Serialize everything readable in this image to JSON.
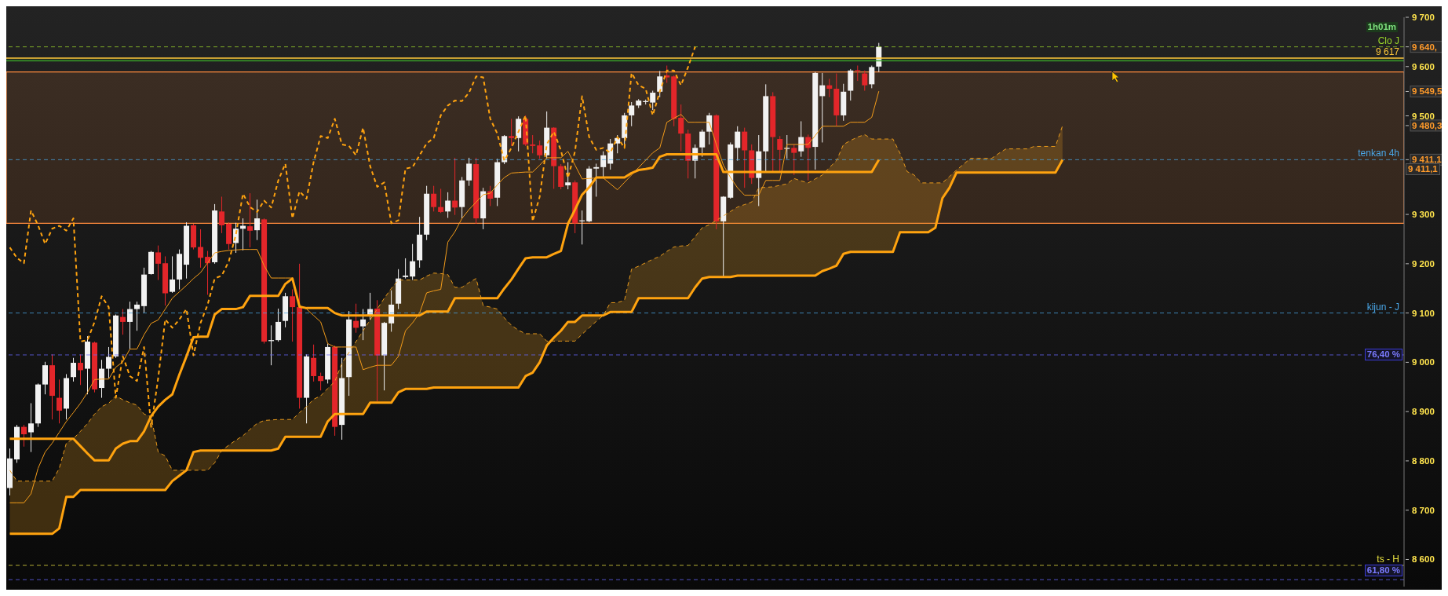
{
  "chart_data": {
    "type": "candlestick",
    "tick_labels": "y",
    "marker": "none",
    "categories": [
      null,
      null,
      null,
      null,
      null,
      null,
      null,
      null,
      null,
      null,
      null,
      null,
      null,
      null,
      null,
      null,
      null,
      null,
      null,
      null,
      null,
      null,
      null,
      null,
      null,
      null,
      null,
      null,
      null,
      null,
      null,
      null,
      null,
      null,
      null,
      null,
      null,
      null,
      null,
      null,
      null,
      null,
      null,
      null,
      null,
      null,
      null,
      null,
      null,
      null,
      null,
      null,
      null,
      null,
      null,
      null,
      null,
      null,
      null,
      null,
      null,
      null,
      null,
      null,
      null,
      null,
      null,
      null,
      null,
      null,
      null,
      null,
      null,
      null,
      null,
      null,
      null,
      null,
      null,
      null,
      null,
      null,
      null,
      null,
      null,
      null,
      null,
      null,
      null,
      null,
      null,
      null,
      null,
      null,
      null,
      null,
      null,
      null,
      null,
      null,
      null,
      null,
      null,
      null,
      null,
      null,
      null,
      null,
      null,
      null,
      null,
      null,
      null,
      null,
      null,
      null,
      null,
      null,
      null,
      null,
      null,
      null,
      null,
      null,
      null,
      null,
      null,
      null,
      null,
      null,
      null,
      null,
      null,
      null,
      null,
      null,
      null,
      null,
      null,
      null,
      null,
      null,
      null,
      null,
      null,
      null,
      null,
      null,
      null,
      null
    ],
    "ohlc": [
      [
        8745,
        8825,
        8730,
        8805
      ],
      [
        8803,
        8873,
        8796,
        8869
      ],
      [
        8869,
        8873,
        8829,
        8854
      ],
      [
        8858,
        8917,
        8818,
        8876
      ],
      [
        8876,
        8957,
        8869,
        8955
      ],
      [
        8955,
        9001,
        8935,
        8994
      ],
      [
        8994,
        9016,
        8884,
        8932
      ],
      [
        8928,
        8965,
        8876,
        8902
      ],
      [
        8906,
        8976,
        8884,
        8968
      ],
      [
        8970,
        9009,
        8961,
        8999
      ],
      [
        8999,
        9016,
        8954,
        8984
      ],
      [
        8987,
        9053,
        8935,
        9042
      ],
      [
        9040,
        9042,
        8939,
        8945
      ],
      [
        8948,
        9005,
        8928,
        8987
      ],
      [
        8987,
        9031,
        8968,
        9011
      ],
      [
        9012,
        9097,
        9009,
        9095
      ],
      [
        9092,
        9108,
        9056,
        9082
      ],
      [
        9082,
        9123,
        9027,
        9108
      ],
      [
        9108,
        9123,
        9064,
        9117
      ],
      [
        9114,
        9192,
        9101,
        9178
      ],
      [
        9179,
        9226,
        9178,
        9224
      ],
      [
        9223,
        9237,
        9167,
        9200
      ],
      [
        9201,
        9215,
        9115,
        9140
      ],
      [
        9143,
        9215,
        9141,
        9168
      ],
      [
        9168,
        9229,
        9148,
        9220
      ],
      [
        9198,
        9284,
        9170,
        9277
      ],
      [
        9278,
        9281,
        9229,
        9233
      ],
      [
        9234,
        9270,
        9192,
        9212
      ],
      [
        9214,
        9226,
        9137,
        9201
      ],
      [
        9203,
        9321,
        9200,
        9308
      ],
      [
        9306,
        9336,
        9262,
        9278
      ],
      [
        9281,
        9284,
        9229,
        9240
      ],
      [
        9242,
        9283,
        9222,
        9271
      ],
      [
        9271,
        9292,
        9227,
        9277
      ],
      [
        9276,
        9343,
        9233,
        9267
      ],
      [
        9268,
        9330,
        9248,
        9292
      ],
      [
        9290,
        9292,
        9038,
        9042
      ],
      [
        9043,
        9075,
        8994,
        9045
      ],
      [
        9045,
        9109,
        9042,
        9082
      ],
      [
        9084,
        9141,
        9071,
        9134
      ],
      [
        9134,
        9148,
        9042,
        9112
      ],
      [
        9112,
        9200,
        8906,
        8928
      ],
      [
        8928,
        9016,
        8876,
        9012
      ],
      [
        9009,
        9036,
        8961,
        8972
      ],
      [
        8972,
        8979,
        8943,
        8962
      ],
      [
        8965,
        9038,
        8957,
        9031
      ],
      [
        9031,
        9034,
        8851,
        8869
      ],
      [
        8873,
        9009,
        8843,
        8968
      ],
      [
        8970,
        9104,
        8932,
        9087
      ],
      [
        9084,
        9119,
        9060,
        9070
      ],
      [
        9073,
        9108,
        9045,
        9087
      ],
      [
        9095,
        9141,
        9086,
        9108
      ],
      [
        9109,
        9126,
        8921,
        9014
      ],
      [
        9014,
        9082,
        8943,
        9080
      ],
      [
        9079,
        9146,
        9062,
        9117
      ],
      [
        9119,
        9189,
        9108,
        9170
      ],
      [
        9173,
        9211,
        9170,
        9176
      ],
      [
        9174,
        9240,
        9167,
        9205
      ],
      [
        9207,
        9295,
        9192,
        9259
      ],
      [
        9259,
        9358,
        9248,
        9342
      ],
      [
        9342,
        9358,
        9306,
        9315
      ],
      [
        9315,
        9352,
        9303,
        9305
      ],
      [
        9306,
        9345,
        9293,
        9328
      ],
      [
        9328,
        9415,
        9299,
        9314
      ],
      [
        9315,
        9376,
        9292,
        9369
      ],
      [
        9369,
        9415,
        9358,
        9403
      ],
      [
        9402,
        9415,
        9281,
        9292
      ],
      [
        9292,
        9354,
        9270,
        9347
      ],
      [
        9347,
        9358,
        9317,
        9332
      ],
      [
        9334,
        9413,
        9317,
        9406
      ],
      [
        9406,
        9461,
        9402,
        9459
      ],
      [
        9459,
        9494,
        9439,
        9455
      ],
      [
        9455,
        9499,
        9428,
        9494
      ],
      [
        9494,
        9501,
        9439,
        9442
      ],
      [
        9442,
        9461,
        9424,
        9439
      ],
      [
        9440,
        9450,
        9413,
        9420
      ],
      [
        9420,
        9509,
        9413,
        9476
      ],
      [
        9476,
        9477,
        9352,
        9398
      ],
      [
        9398,
        9402,
        9351,
        9356
      ],
      [
        9359,
        9406,
        9351,
        9365
      ],
      [
        9365,
        9369,
        9262,
        9282
      ],
      [
        9286,
        9308,
        9239,
        9288
      ],
      [
        9286,
        9398,
        9284,
        9393
      ],
      [
        9393,
        9403,
        9336,
        9396
      ],
      [
        9396,
        9428,
        9376,
        9420
      ],
      [
        9403,
        9453,
        9391,
        9444
      ],
      [
        9444,
        9461,
        9424,
        9455
      ],
      [
        9455,
        9506,
        9442,
        9501
      ],
      [
        9501,
        9528,
        9479,
        9521
      ],
      [
        9521,
        9534,
        9516,
        9531
      ],
      [
        9528,
        9533,
        9523,
        9530
      ],
      [
        9527,
        9551,
        9512,
        9547
      ],
      [
        9549,
        9591,
        9538,
        9580
      ],
      [
        9582,
        9602,
        9567,
        9578
      ],
      [
        9580,
        9582,
        9479,
        9494
      ],
      [
        9496,
        9523,
        9428,
        9464
      ],
      [
        9464,
        9472,
        9373,
        9409
      ],
      [
        9409,
        9442,
        9373,
        9435
      ],
      [
        9436,
        9472,
        9417,
        9468
      ],
      [
        9468,
        9506,
        9442,
        9501
      ],
      [
        9501,
        9503,
        9270,
        9286
      ],
      [
        9286,
        9337,
        9174,
        9336
      ],
      [
        9334,
        9446,
        9332,
        9442
      ],
      [
        9435,
        9479,
        9409,
        9468
      ],
      [
        9468,
        9476,
        9354,
        9430
      ],
      [
        9430,
        9442,
        9362,
        9374
      ],
      [
        9374,
        9461,
        9317,
        9428
      ],
      [
        9428,
        9564,
        9387,
        9540
      ],
      [
        9540,
        9548,
        9387,
        9457
      ],
      [
        9453,
        9459,
        9387,
        9431
      ],
      [
        9433,
        9461,
        9413,
        9435
      ],
      [
        9435,
        9442,
        9380,
        9425
      ],
      [
        9428,
        9489,
        9417,
        9457
      ],
      [
        9457,
        9462,
        9369,
        9435
      ],
      [
        9437,
        9589,
        9391,
        9587
      ],
      [
        9540,
        9587,
        9446,
        9562
      ],
      [
        9562,
        9575,
        9538,
        9555
      ],
      [
        9555,
        9586,
        9479,
        9501
      ],
      [
        9501,
        9565,
        9490,
        9549
      ],
      [
        9551,
        9595,
        9531,
        9592
      ],
      [
        9593,
        9602,
        9571,
        9592
      ],
      [
        9586,
        9592,
        9551,
        9562
      ],
      [
        9564,
        9602,
        9556,
        9599
      ],
      [
        9600,
        9648,
        9589,
        9640
      ],
      null,
      null,
      null,
      null,
      null,
      null,
      null,
      null,
      null,
      null,
      null,
      null,
      null,
      null,
      null,
      null,
      null,
      null,
      null,
      null,
      null,
      null,
      null,
      null,
      null,
      null
    ],
    "colors": [
      "#f2f2f2",
      "#f2f2f2",
      "#e3262a",
      "#f2f2f2",
      "#f2f2f2",
      "#f2f2f2",
      "#e3262a",
      "#e3262a",
      "#f2f2f2",
      "#f2f2f2",
      "#e3262a",
      "#f2f2f2",
      "#e3262a",
      "#f2f2f2",
      "#f2f2f2",
      "#f2f2f2",
      "#e3262a",
      "#f2f2f2",
      "#f2f2f2",
      "#f2f2f2",
      "#f2f2f2",
      "#e3262a",
      "#e3262a",
      "#f2f2f2",
      "#f2f2f2",
      "#f2f2f2",
      "#e3262a",
      "#e3262a",
      "#e3262a",
      "#f2f2f2",
      "#e3262a",
      "#e3262a",
      "#f2f2f2",
      "#f2f2f2",
      "#e3262a",
      "#f2f2f2",
      "#e3262a",
      "#f2f2f2",
      "#f2f2f2",
      "#f2f2f2",
      "#e3262a",
      "#e3262a",
      "#f2f2f2",
      "#e3262a",
      "#e3262a",
      "#f2f2f2",
      "#e3262a",
      "#f2f2f2",
      "#f2f2f2",
      "#e3262a",
      "#f2f2f2",
      "#f2f2f2",
      "#e3262a",
      "#f2f2f2",
      "#f2f2f2",
      "#f2f2f2",
      "#f2f2f2",
      "#f2f2f2",
      "#f2f2f2",
      "#f2f2f2",
      "#e3262a",
      "#e3262a",
      "#f2f2f2",
      "#e3262a",
      "#f2f2f2",
      "#f2f2f2",
      "#e3262a",
      "#f2f2f2",
      "#e3262a",
      "#f2f2f2",
      "#f2f2f2",
      "#e3262a",
      "#f2f2f2",
      "#e3262a",
      "#e3262a",
      "#e3262a",
      "#f2f2f2",
      "#e3262a",
      "#e3262a",
      "#f2f2f2",
      "#e3262a",
      "#f2f2f2",
      "#f2f2f2",
      "#f2f2f2",
      "#f2f2f2",
      "#f2f2f2",
      "#f2f2f2",
      "#f2f2f2",
      "#f2f2f2",
      "#f2f2f2",
      "#f2f2f2",
      "#f2f2f2",
      "#f2f2f2",
      "#e3262a",
      "#e3262a",
      "#e3262a",
      "#e3262a",
      "#f2f2f2",
      "#f2f2f2",
      "#f2f2f2",
      "#e3262a",
      "#f2f2f2",
      "#f2f2f2",
      "#f2f2f2",
      "#e3262a",
      "#e3262a",
      "#f2f2f2",
      "#f2f2f2",
      "#e3262a",
      "#e3262a",
      "#f2f2f2",
      "#e3262a",
      "#f2f2f2",
      "#e3262a",
      "#f2f2f2",
      "#f2f2f2",
      "#e3262a",
      "#e3262a",
      "#f2f2f2",
      "#f2f2f2",
      "#e3262a",
      "#e3262a",
      "#f2f2f2",
      "#f2f2f2",
      null,
      null,
      null,
      null,
      null,
      null,
      null,
      null,
      null,
      null,
      null,
      null,
      null,
      null,
      null,
      null,
      null,
      null,
      null,
      null,
      null,
      null,
      null,
      null,
      null,
      null
    ],
    "series": [
      {
        "type": "line",
        "color": "#f39c1a",
        "values": [
          8715,
          8715,
          8715,
          8733,
          8785,
          8818,
          8836,
          8858,
          8880,
          8898,
          8917,
          8939,
          8965,
          8966,
          8966,
          8990,
          9001,
          9027,
          9027,
          9056,
          9079,
          9086,
          9108,
          9130,
          9143,
          9156,
          9170,
          9182,
          9202,
          9222,
          9225,
          9227,
          9228,
          9229,
          9229,
          9229,
          9196,
          9171,
          9171,
          9171,
          9171,
          9115,
          9108,
          9095,
          9082,
          9038,
          9031,
          9031,
          9031,
          9031,
          8985,
          8990,
          8994,
          8994,
          8994,
          9012,
          9064,
          9080,
          9100,
          9141,
          9145,
          9148,
          9244,
          9265,
          9292,
          9310,
          9325,
          9340,
          9343,
          9360,
          9375,
          9384,
          9385,
          9386,
          9386,
          9400,
          9415,
          9415,
          9415,
          9428,
          9400,
          9372,
          9373,
          9374,
          9374,
          9362,
          9350,
          9365,
          9380,
          9395,
          9410,
          9425,
          9435,
          9487,
          9495,
          9503,
          9487,
          9487,
          9487,
          9487,
          9442,
          9400,
          9375,
          9354,
          9339,
          9339,
          9339,
          9369,
          9369,
          9369,
          9442,
          9442,
          9442,
          9442,
          9460,
          9479,
          9479,
          9479,
          9479,
          9487,
          9487,
          9487,
          9497,
          9550,
          null,
          null,
          null,
          null,
          null,
          null,
          null,
          null,
          null,
          null,
          null,
          null,
          null,
          null,
          null,
          null,
          null,
          null,
          null,
          null,
          null,
          null,
          null,
          null,
          null,
          null
        ]
      },
      {
        "type": "line",
        "color": "#ffa30f",
        "values": [
          8845,
          8845,
          8845,
          8845,
          8845,
          8845,
          8845,
          8845,
          8845,
          8845,
          8830,
          8815,
          8801,
          8801,
          8801,
          8825,
          8835,
          8840,
          8840,
          8860,
          8891,
          8910,
          8924,
          8935,
          8975,
          9012,
          9051,
          9052,
          9052,
          9097,
          9108,
          9108,
          9108,
          9112,
          9135,
          9135,
          9135,
          9135,
          9135,
          9159,
          9170,
          9113,
          9110,
          9110,
          9110,
          9110,
          9100,
          9095,
          9095,
          9095,
          9095,
          9095,
          9095,
          9095,
          9095,
          9095,
          9095,
          9095,
          9095,
          9103,
          9103,
          9103,
          9103,
          9130,
          9130,
          9130,
          9130,
          9130,
          9130,
          9130,
          9150,
          9168,
          9190,
          9211,
          9213,
          9213,
          9213,
          9220,
          9226,
          9281,
          9310,
          9340,
          9355,
          9375,
          9375,
          9375,
          9375,
          9375,
          9384,
          9390,
          9392,
          9395,
          9417,
          9422,
          9422,
          9422,
          9422,
          9422,
          9422,
          9422,
          9422,
          9386,
          9386,
          9386,
          9386,
          9386,
          9386,
          9386,
          9386,
          9386,
          9386,
          9386,
          9386,
          9386,
          9386,
          9386,
          9386,
          9386,
          9386,
          9386,
          9386,
          9386,
          9386,
          9411,
          null,
          null,
          null,
          null,
          null,
          null,
          null,
          null,
          null,
          null,
          null,
          null,
          null,
          null,
          null,
          null,
          null,
          null,
          null,
          null,
          null,
          null,
          null,
          null,
          null,
          null
        ]
      },
      {
        "type": "line",
        "color": "#e89a1c",
        "line_style": "dashed",
        "values": [
          8781,
          8759,
          8759,
          8759,
          8759,
          8759,
          8759,
          8785,
          8836,
          8845,
          8860,
          8876,
          8895,
          8910,
          8917,
          8932,
          8924,
          8918,
          8913,
          8895,
          8890,
          8818,
          8810,
          8781,
          8781,
          8781,
          8781,
          8781,
          8781,
          8796,
          8821,
          8832,
          8842,
          8851,
          8864,
          8876,
          8882,
          8883,
          8884,
          8884,
          8884,
          8898,
          8910,
          8925,
          8932,
          8947,
          8961,
          8998,
          9020,
          9042,
          9064,
          9086,
          9108,
          9130,
          9150,
          9167,
          9167,
          9167,
          9167,
          9175,
          9181,
          9180,
          9178,
          9152,
          9152,
          9162,
          9170,
          9115,
          9112,
          9108,
          9090,
          9075,
          9065,
          9058,
          9058,
          9058,
          9043,
          9043,
          9043,
          9043,
          9043,
          9057,
          9070,
          9083,
          9095,
          9121,
          9121,
          9126,
          9189,
          9195,
          9202,
          9209,
          9215,
          9225,
          9234,
          9236,
          9237,
          9255,
          9273,
          9279,
          9288,
          9297,
          9306,
          9315,
          9320,
          9325,
          9354,
          9355,
          9356,
          9359,
          9362,
          9373,
          9368,
          9364,
          9372,
          9380,
          9395,
          9409,
          9442,
          9450,
          9457,
          9462,
          9453,
          9453,
          9453,
          9453,
          9424,
          9387,
          9380,
          9364,
          9364,
          9364,
          9364,
          9377,
          9390,
          9402,
          9414,
          9414,
          9414,
          9414,
          9424,
          9433,
          9433,
          9433,
          9433,
          9438,
          9438,
          9438,
          9438,
          9480
        ],
        "upper": [
          8781,
          8759,
          8759,
          8759,
          8759,
          8759,
          8759,
          8785,
          8836,
          8845,
          8860,
          8876,
          8895,
          8910,
          8917,
          8932,
          8924,
          8918,
          8913,
          8895,
          8890,
          8818,
          8810,
          8781,
          8781,
          8781,
          8781,
          8781,
          8781,
          8796,
          8821,
          8832,
          8842,
          8851,
          8864,
          8876,
          8882,
          8883,
          8884,
          8884,
          8884,
          8898,
          8910,
          8925,
          8932,
          8947,
          8961,
          8998,
          9020,
          9042,
          9064,
          9086,
          9108,
          9130,
          9150,
          9167,
          9167,
          9167,
          9167,
          9175,
          9181,
          9180,
          9178,
          9152,
          9152,
          9162,
          9170,
          9115,
          9112,
          9108,
          9090,
          9075,
          9065,
          9058,
          9058,
          9058,
          9043,
          9043,
          9043,
          9043,
          9043,
          9057,
          9070,
          9083,
          9095,
          9121,
          9121,
          9126,
          9189,
          9195,
          9202,
          9209,
          9215,
          9225,
          9234,
          9236,
          9237,
          9255,
          9273,
          9279,
          9288,
          9297,
          9306,
          9315,
          9320,
          9325,
          9354,
          9355,
          9356,
          9359,
          9362,
          9373,
          9368,
          9364,
          9372,
          9380,
          9395,
          9409,
          9442,
          9450,
          9457,
          9462,
          9453,
          9453,
          9453,
          9453,
          9424,
          9387,
          9380,
          9364,
          9364,
          9364,
          9364,
          9377,
          9390,
          9402,
          9414,
          9414,
          9414,
          9414,
          9424,
          9433,
          9433,
          9433,
          9433,
          9438,
          9438,
          9438,
          9438,
          9480
        ],
        "lower": [
          8652,
          8652,
          8652,
          8652,
          8652,
          8652,
          8652,
          8663,
          8727,
          8727,
          8741,
          8741,
          8741,
          8741,
          8741,
          8741,
          8741,
          8741,
          8741,
          8741,
          8741,
          8741,
          8741,
          8759,
          8770,
          8781,
          8818,
          8821,
          8821,
          8821,
          8821,
          8821,
          8821,
          8821,
          8821,
          8821,
          8821,
          8821,
          8825,
          8849,
          8849,
          8849,
          8849,
          8849,
          8849,
          8880,
          8895,
          8895,
          8895,
          8895,
          8895,
          8918,
          8918,
          8918,
          8918,
          8939,
          8946,
          8946,
          8946,
          8946,
          8949,
          8949,
          8949,
          8949,
          8949,
          8949,
          8949,
          8949,
          8949,
          8949,
          8949,
          8949,
          8949,
          8972,
          8979,
          9000,
          9034,
          9050,
          9064,
          9082,
          9082,
          9095,
          9095,
          9095,
          9095,
          9102,
          9102,
          9102,
          9102,
          9130,
          9130,
          9130,
          9130,
          9130,
          9130,
          9130,
          9130,
          9152,
          9170,
          9173,
          9173,
          9173,
          9173,
          9176,
          9176,
          9176,
          9176,
          9176,
          9176,
          9176,
          9176,
          9176,
          9176,
          9176,
          9176,
          9185,
          9190,
          9196,
          9220,
          9224,
          9224,
          9224,
          9224,
          9224,
          9224,
          9224,
          9264,
          9264,
          9264,
          9264,
          9264,
          9273,
          9333,
          9354,
          9385,
          9385,
          9385,
          9385,
          9385,
          9385,
          9385,
          9385,
          9385,
          9385,
          9385,
          9385,
          9385,
          9385,
          9385,
          9411
        ]
      },
      {
        "type": "line",
        "color": "#ffa30f",
        "values": [
          8652,
          8652,
          8652,
          8652,
          8652,
          8652,
          8652,
          8663,
          8727,
          8727,
          8741,
          8741,
          8741,
          8741,
          8741,
          8741,
          8741,
          8741,
          8741,
          8741,
          8741,
          8741,
          8741,
          8759,
          8770,
          8781,
          8818,
          8821,
          8821,
          8821,
          8821,
          8821,
          8821,
          8821,
          8821,
          8821,
          8821,
          8821,
          8825,
          8849,
          8849,
          8849,
          8849,
          8849,
          8849,
          8880,
          8895,
          8895,
          8895,
          8895,
          8895,
          8918,
          8918,
          8918,
          8918,
          8939,
          8946,
          8946,
          8946,
          8946,
          8949,
          8949,
          8949,
          8949,
          8949,
          8949,
          8949,
          8949,
          8949,
          8949,
          8949,
          8949,
          8949,
          8972,
          8979,
          9000,
          9034,
          9050,
          9064,
          9082,
          9082,
          9095,
          9095,
          9095,
          9095,
          9102,
          9102,
          9102,
          9102,
          9130,
          9130,
          9130,
          9130,
          9130,
          9130,
          9130,
          9130,
          9152,
          9170,
          9173,
          9173,
          9173,
          9173,
          9176,
          9176,
          9176,
          9176,
          9176,
          9176,
          9176,
          9176,
          9176,
          9176,
          9176,
          9176,
          9185,
          9190,
          9196,
          9220,
          9224,
          9224,
          9224,
          9224,
          9224,
          9224,
          9224,
          9264,
          9264,
          9264,
          9264,
          9264,
          9273,
          9333,
          9354,
          9385,
          9385,
          9385,
          9385,
          9385,
          9385,
          9385,
          9385,
          9385,
          9385,
          9385,
          9385,
          9385,
          9385,
          9385,
          9411
        ]
      },
      {
        "type": "line",
        "color": "#ffa30f",
        "line_style": "dashed",
        "values": [
          9233,
          9212,
          9201,
          9308,
          9278,
          9240,
          9271,
          9277,
          9267,
          9292,
          9042,
          9045,
          9082,
          9134,
          9112,
          8928,
          9012,
          8972,
          8962,
          9031,
          8869,
          8968,
          9087,
          9070,
          9087,
          9108,
          9014,
          9080,
          9117,
          9170,
          9176,
          9205,
          9259,
          9342,
          9315,
          9305,
          9328,
          9314,
          9369,
          9403,
          9292,
          9347,
          9332,
          9406,
          9459,
          9455,
          9494,
          9442,
          9439,
          9420,
          9476,
          9398,
          9356,
          9365,
          9282,
          9288,
          9393,
          9396,
          9420,
          9444,
          9455,
          9501,
          9521,
          9531,
          9530,
          9547,
          9580,
          9578,
          9494,
          9464,
          9409,
          9435,
          9468,
          9501,
          9286,
          9336,
          9442,
          9468,
          9430,
          9374,
          9428,
          9540,
          9457,
          9431,
          9435,
          9425,
          9457,
          9435,
          9587,
          9562,
          9555,
          9501,
          9549,
          9592,
          9592,
          9562,
          9599,
          9640,
          null,
          null,
          null,
          null,
          null,
          null,
          null,
          null,
          null,
          null,
          null,
          null,
          null,
          null,
          null,
          null,
          null,
          null,
          null,
          null,
          null,
          null,
          null,
          null,
          null,
          null,
          null,
          null,
          null,
          null,
          null,
          null,
          null,
          null,
          null,
          null,
          null,
          null,
          null,
          null,
          null,
          null,
          null,
          null,
          null,
          null,
          null,
          null,
          null,
          null,
          null,
          null
        ]
      }
    ],
    "ylim": [
      8545,
      9700
    ],
    "yticks": [
      {
        "value": 8600,
        "label": "8 600"
      },
      {
        "value": 8700,
        "label": "8 700"
      },
      {
        "value": 8800,
        "label": "8 800"
      },
      {
        "value": 8900,
        "label": "8 900"
      },
      {
        "value": 9000,
        "label": "9 000"
      },
      {
        "value": 9100,
        "label": "9 100"
      },
      {
        "value": 9200,
        "label": "9 200"
      },
      {
        "value": 9300,
        "label": "9 300"
      },
      {
        "value": 9411.1,
        "label": "9 411,1"
      },
      {
        "value": 9480.3,
        "label": "9 480,3"
      },
      {
        "value": 9500,
        "label": "9 500"
      },
      {
        "value": 9549.5,
        "label": "9 549,5"
      },
      {
        "value": 9600,
        "label": "9 600"
      },
      {
        "value": 9640,
        "label": "9 640,"
      },
      {
        "value": 9700,
        "label": "9 700"
      }
    ],
    "ref_lines": [
      {
        "axis": "y",
        "value": 9640,
        "label": "Clo J",
        "color": "#9ad72a",
        "line_style": "dashed"
      },
      {
        "axis": "y",
        "value": 9617,
        "label": "9 617",
        "color": "#ffc83a",
        "line_style": "solid"
      },
      {
        "axis": "y",
        "value": 9612,
        "color": "#3aa82a",
        "line_style": "solid"
      },
      {
        "axis": "y",
        "value": 9411.1,
        "label": "tenkan 4h",
        "color": "#4aa6e6",
        "line_style": "dashed"
      },
      {
        "axis": "y",
        "value": 9100,
        "label": "kijun - J",
        "color": "#4aa6e6",
        "line_style": "dashed"
      },
      {
        "axis": "y",
        "value": 9015,
        "color": "#6a6aff",
        "line_style": "dashed"
      },
      {
        "axis": "y",
        "value": 8588,
        "label": "ts - H",
        "color": "#e8e040",
        "line_style": "dashed"
      },
      {
        "axis": "y",
        "value": 8559,
        "color": "#6a6aff",
        "line_style": "dashed"
      }
    ],
    "bands": [
      {
        "axis": "y",
        "from": 9282,
        "to": 9589,
        "color": "#ff8a3c"
      }
    ],
    "annotations": [
      "1h01m",
      "9 411,1",
      "76,40 %",
      "61,80 %"
    ]
  }
}
